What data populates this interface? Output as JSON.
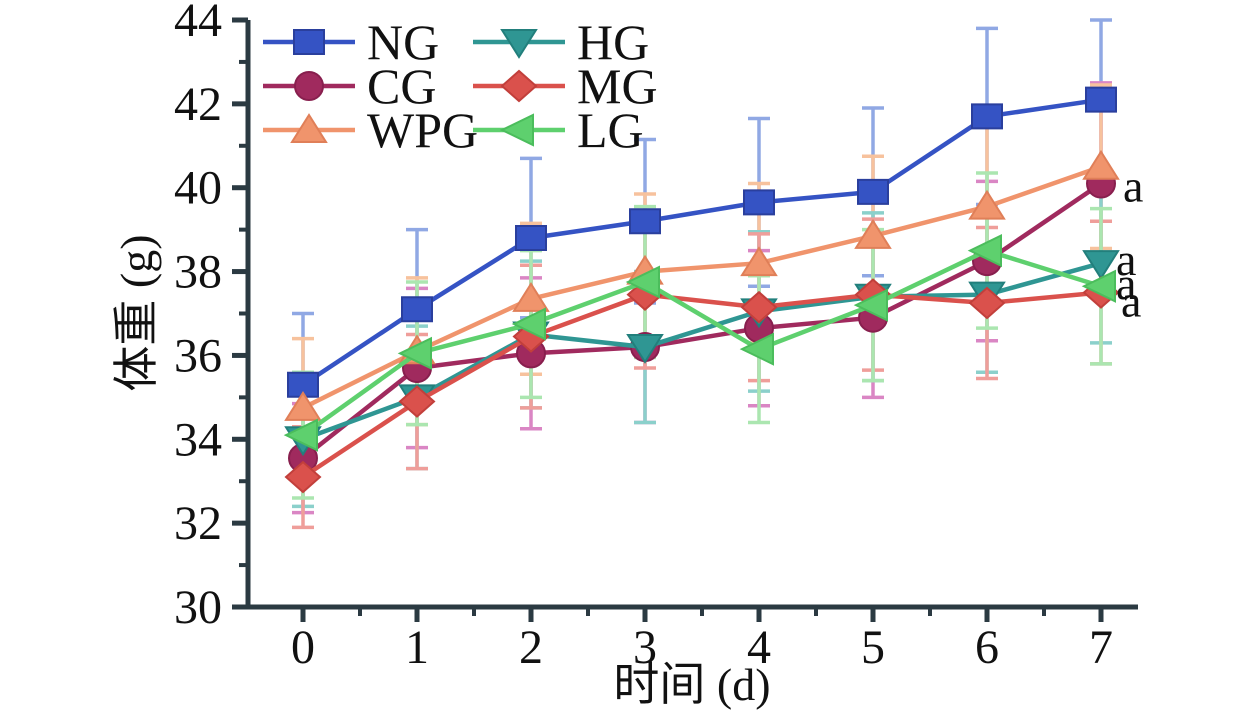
{
  "chart_data": {
    "type": "line",
    "title": "",
    "xlabel": "时间 (d)",
    "ylabel": "体重 (g)",
    "x": [
      0,
      1,
      2,
      3,
      4,
      5,
      6,
      7
    ],
    "xlim": [
      -0.5,
      7.3
    ],
    "ylim": [
      30,
      44
    ],
    "y_major_ticks": [
      30,
      32,
      34,
      36,
      38,
      40,
      42,
      44
    ],
    "y_minor_ticks": [
      31,
      33,
      35,
      37,
      39,
      41,
      43
    ],
    "x_major_ticks": [
      0,
      1,
      2,
      3,
      4,
      5,
      6,
      7
    ],
    "x_minor_ticks": [
      0.5,
      1.5,
      2.5,
      3.5,
      4.5,
      5.5,
      6.5
    ],
    "grid": false,
    "axis_color": "#2b3a42",
    "error_bars": true,
    "series": [
      {
        "name": "NG",
        "marker": "square",
        "color": "#3553c4",
        "edge": "#2a3f9d",
        "error_color": "#90a8e4",
        "values": [
          35.3,
          37.1,
          38.8,
          39.2,
          39.65,
          39.9,
          41.7,
          42.1
        ],
        "errors": [
          1.7,
          1.9,
          1.9,
          1.95,
          2.0,
          2.0,
          2.1,
          1.9
        ]
      },
      {
        "name": "CG",
        "marker": "circle",
        "color": "#a02a5e",
        "edge": "#881f4e",
        "error_color": "#da86c4",
        "values": [
          33.55,
          35.7,
          36.05,
          36.2,
          36.65,
          36.9,
          38.25,
          40.1
        ],
        "errors": [
          1.3,
          1.9,
          1.8,
          1.8,
          1.85,
          1.9,
          1.9,
          2.4
        ]
      },
      {
        "name": "WPG",
        "marker": "triangle-up",
        "color": "#f0946c",
        "edge": "#e07f58",
        "error_color": "#f7c29d",
        "values": [
          34.75,
          36.1,
          37.35,
          38.0,
          38.2,
          38.85,
          39.55,
          40.5
        ],
        "errors": [
          1.65,
          1.75,
          1.8,
          1.85,
          1.9,
          1.9,
          1.9,
          1.95
        ]
      },
      {
        "name": "HG",
        "marker": "triangle-down",
        "color": "#2f9693",
        "edge": "#227f7c",
        "error_color": "#8bd0cb",
        "values": [
          34.0,
          35.0,
          36.5,
          36.2,
          37.05,
          37.4,
          37.45,
          38.2
        ],
        "errors": [
          1.6,
          1.7,
          1.75,
          1.8,
          1.9,
          2.0,
          1.85,
          1.9
        ]
      },
      {
        "name": "MG",
        "marker": "diamond",
        "color": "#da514c",
        "edge": "#c23f3b",
        "error_color": "#ef9e9a",
        "values": [
          33.1,
          34.9,
          36.45,
          37.45,
          37.15,
          37.45,
          37.25,
          37.5
        ],
        "errors": [
          1.2,
          1.6,
          1.7,
          1.75,
          1.75,
          1.8,
          1.8,
          1.7
        ]
      },
      {
        "name": "LG",
        "marker": "triangle-left",
        "color": "#5ed06e",
        "edge": "#4bbd5c",
        "error_color": "#abe6b0",
        "values": [
          34.1,
          36.05,
          36.75,
          37.75,
          36.15,
          37.2,
          38.5,
          37.65
        ],
        "errors": [
          1.5,
          1.7,
          1.75,
          1.8,
          1.75,
          1.8,
          1.85,
          1.85
        ]
      }
    ],
    "legend": {
      "position": "top-left",
      "columns": [
        [
          "NG",
          "CG",
          "WPG"
        ],
        [
          "HG",
          "MG",
          "LG"
        ]
      ]
    },
    "annotations": [
      {
        "text": "a",
        "series": "CG",
        "x": 7
      },
      {
        "text": "a",
        "series": "HG",
        "x": 7
      },
      {
        "text": "a",
        "series": "LG",
        "x": 7
      },
      {
        "text": "a",
        "series": "MG",
        "x": 7
      }
    ]
  }
}
